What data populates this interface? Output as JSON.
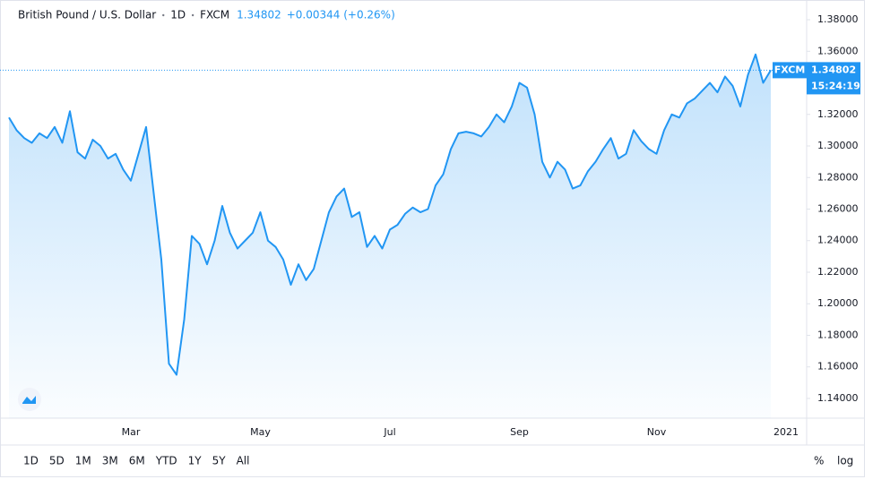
{
  "header": {
    "symbol": "British Pound / U.S. Dollar",
    "interval": "1D",
    "exchange": "FXCM",
    "change": "+0.00344 (+0.26%)",
    "time": "15:24:19"
  },
  "chart_data": {
    "type": "area",
    "color": "#2196f3",
    "last": 1.34802,
    "ylim": [
      1.1275,
      1.3925
    ],
    "yticks": [
      {
        "value": 1.14,
        "label": "1.14000"
      },
      {
        "value": 1.16,
        "label": "1.16000"
      },
      {
        "value": 1.18,
        "label": "1.18000"
      },
      {
        "value": 1.2,
        "label": "1.20000"
      },
      {
        "value": 1.22,
        "label": "1.22000"
      },
      {
        "value": 1.24,
        "label": "1.24000"
      },
      {
        "value": 1.26,
        "label": "1.26000"
      },
      {
        "value": 1.28,
        "label": "1.28000"
      },
      {
        "value": 1.3,
        "label": "1.30000"
      },
      {
        "value": 1.32,
        "label": "1.32000"
      },
      {
        "value": 1.34,
        "label": "1.34000"
      },
      {
        "value": 1.36,
        "label": "1.36000"
      },
      {
        "value": 1.38,
        "label": "1.38000"
      }
    ],
    "grid": false,
    "categories": [
      null,
      null,
      null,
      null,
      null,
      null,
      null,
      null,
      null,
      null,
      null,
      null,
      null,
      null,
      null,
      null,
      "Mar",
      null,
      null,
      null,
      null,
      null,
      null,
      null,
      null,
      null,
      null,
      null,
      null,
      null,
      null,
      null,
      null,
      "May",
      null,
      null,
      null,
      null,
      null,
      null,
      null,
      null,
      null,
      null,
      null,
      null,
      null,
      null,
      null,
      null,
      "Jul",
      null,
      null,
      null,
      null,
      null,
      null,
      null,
      null,
      null,
      null,
      null,
      null,
      null,
      null,
      null,
      null,
      "Sep",
      null,
      null,
      null,
      null,
      null,
      null,
      null,
      null,
      null,
      null,
      null,
      null,
      null,
      null,
      null,
      null,
      null,
      "Nov",
      null,
      null,
      null,
      null,
      null,
      null,
      null,
      null,
      null,
      null,
      null,
      null,
      null,
      null,
      null,
      null,
      "2021"
    ],
    "values": [
      1.318,
      1.31,
      1.305,
      1.302,
      1.308,
      1.305,
      1.312,
      1.302,
      1.322,
      1.296,
      1.292,
      1.304,
      1.3,
      1.292,
      1.295,
      1.285,
      1.278,
      1.295,
      1.312,
      1.27,
      1.228,
      1.162,
      1.155,
      1.19,
      1.243,
      1.238,
      1.225,
      1.24,
      1.262,
      1.245,
      1.235,
      1.24,
      1.245,
      1.258,
      1.24,
      1.236,
      1.228,
      1.212,
      1.225,
      1.215,
      1.222,
      1.24,
      1.258,
      1.268,
      1.273,
      1.255,
      1.258,
      1.236,
      1.243,
      1.235,
      1.247,
      1.25,
      1.257,
      1.261,
      1.258,
      1.26,
      1.275,
      1.282,
      1.298,
      1.308,
      1.309,
      1.308,
      1.306,
      1.312,
      1.32,
      1.315,
      1.325,
      1.34,
      1.337,
      1.32,
      1.29,
      1.28,
      1.29,
      1.285,
      1.273,
      1.275,
      1.284,
      1.29,
      1.298,
      1.305,
      1.292,
      1.295,
      1.31,
      1.303,
      1.298,
      1.295,
      1.31,
      1.32,
      1.318,
      1.327,
      1.33,
      1.335,
      1.34,
      1.334,
      1.344,
      1.338,
      1.325,
      1.345,
      1.358,
      1.34,
      1.348,
      null,
      null
    ]
  },
  "toolbar": {
    "ranges": [
      "1D",
      "5D",
      "1M",
      "3M",
      "6M",
      "YTD",
      "1Y",
      "5Y",
      "All"
    ],
    "scale": [
      "%",
      "log"
    ]
  }
}
